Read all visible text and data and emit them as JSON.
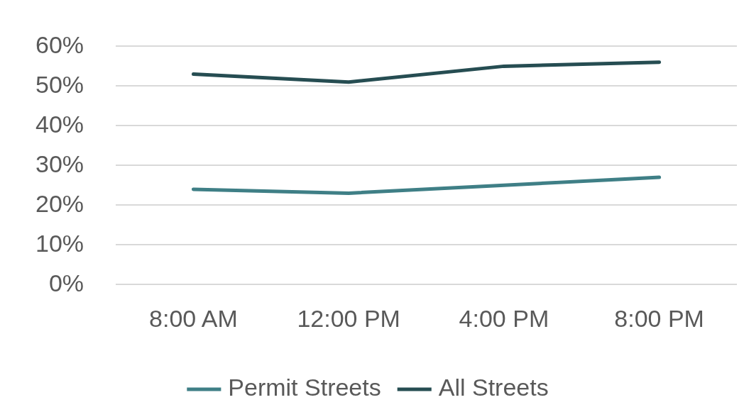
{
  "chart_data": {
    "type": "line",
    "categories": [
      "8:00 AM",
      "12:00 PM",
      "4:00 PM",
      "8:00 PM"
    ],
    "series": [
      {
        "name": "Permit Streets",
        "color": "#3f7f86",
        "values": [
          24,
          23,
          25,
          27
        ]
      },
      {
        "name": "All Streets",
        "color": "#264d52",
        "values": [
          53,
          51,
          55,
          56
        ]
      }
    ],
    "ylim": [
      0,
      60
    ],
    "yticks": [
      {
        "value": 0,
        "label": "0%"
      },
      {
        "value": 10,
        "label": "10%"
      },
      {
        "value": 20,
        "label": "20%"
      },
      {
        "value": 30,
        "label": "30%"
      },
      {
        "value": 40,
        "label": "40%"
      },
      {
        "value": 50,
        "label": "50%"
      },
      {
        "value": 60,
        "label": "60%"
      }
    ],
    "grid": "y",
    "legend": "bottom",
    "marker": "none",
    "line_style": "solid"
  }
}
